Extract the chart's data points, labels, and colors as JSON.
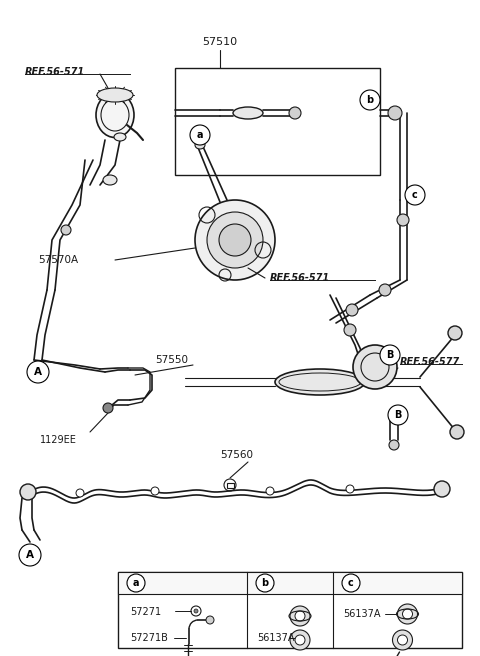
{
  "fig_width": 4.8,
  "fig_height": 6.56,
  "dpi": 100,
  "bg_color": "#ffffff",
  "line_color": "#1a1a1a",
  "labels": {
    "ref_56_571_top": "REF.56-571",
    "ref_56_571_mid": "REF.56-571",
    "ref_56_577": "REF.56-577",
    "part_57510": "57510",
    "part_57570A": "57570A",
    "part_57550": "57550",
    "part_57560": "57560",
    "part_1129EE": "1129EE",
    "part_57271": "57271",
    "part_57271B": "57271B",
    "part_56137A_b": "56137A",
    "part_56137A_c": "56137A"
  }
}
